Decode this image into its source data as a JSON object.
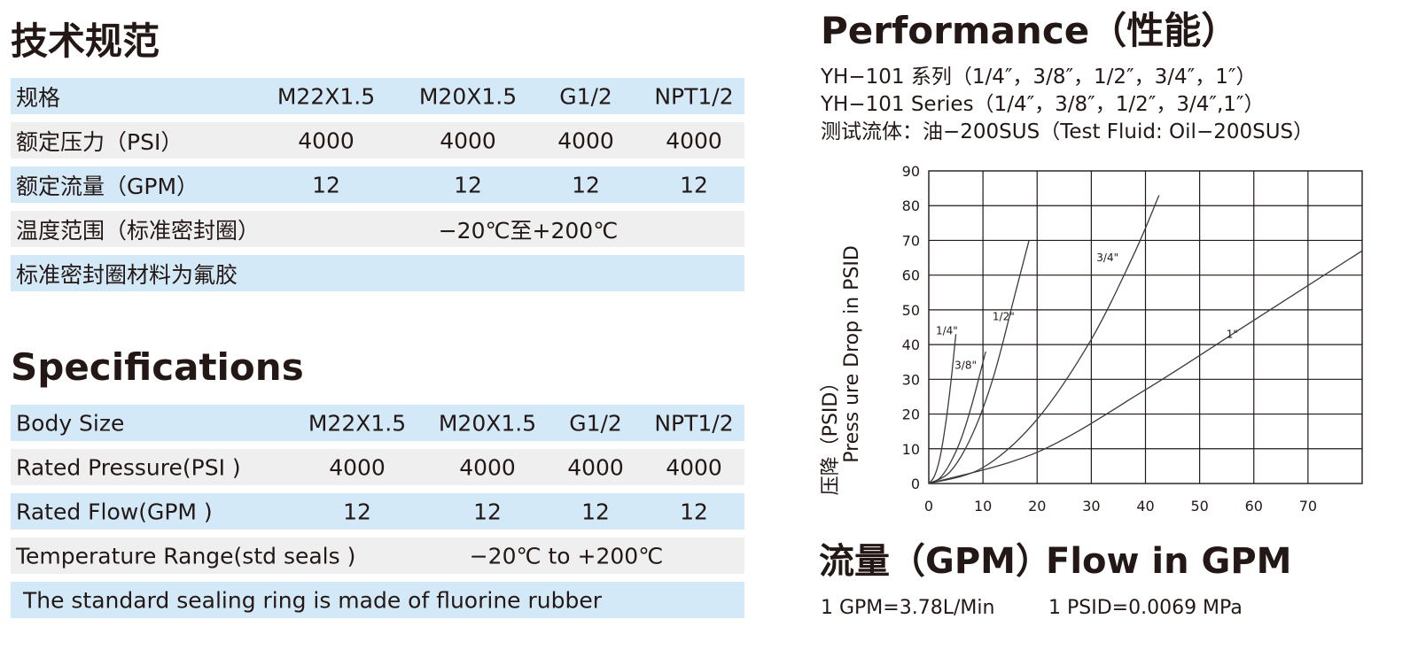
{
  "cn_section": {
    "title": "技术规范",
    "rows": [
      {
        "label": "规格",
        "values": [
          "M22X1.5",
          "M20X1.5",
          "G1/2",
          "NPT1/2"
        ]
      },
      {
        "label": "额定压力（PSI）",
        "values": [
          "4000",
          "4000",
          "4000",
          "4000"
        ]
      },
      {
        "label": "额定流量（GPM）",
        "values": [
          "12",
          "12",
          "12",
          "12"
        ]
      },
      {
        "label": "温度范围（标准密封圈）",
        "span": "−20℃至+200℃"
      },
      {
        "label": "标准密封圈材料为氟胶"
      }
    ]
  },
  "en_section": {
    "title": "Specifications",
    "rows": [
      {
        "label": "Body Size",
        "values": [
          "M22X1.5",
          "M20X1.5",
          "G1/2",
          "NPT1/2"
        ]
      },
      {
        "label": "Rated Pressure(PSI )",
        "values": [
          "4000",
          "4000",
          "4000",
          "4000"
        ]
      },
      {
        "label": "Rated Flow(GPM )",
        "values": [
          "12",
          "12",
          "12",
          "12"
        ]
      },
      {
        "label": "Temperature Range(std seals )",
        "span": "−20℃ to +200℃"
      },
      {
        "label": " The standard sealing ring is made of fluorine rubber"
      }
    ]
  },
  "performance": {
    "title": "Performance（性能）",
    "line1": "YH−101 系列（1/4″，3/8″，1/2″，3/4″，1″）",
    "line2": "YH−101 Series（1/4″，3/8″，1/2″，3/4″,1″）",
    "line3": "测试流体：油−200SUS（Test Fluid: Oil−200SUS）"
  },
  "bottom": {
    "flow_cn": "流量（GPM）",
    "flow_en": "Flow in GPM",
    "conv1": "1 GPM=3.78L/Min",
    "conv2": "1 PSID=0.0069 MPa"
  },
  "chart_data": {
    "type": "line",
    "title": "",
    "xlabel": "",
    "ylabel": "压降（PSID）Press ure Drop in PSID",
    "ylabel_cn": "压降（PSID）",
    "ylabel_en": "Press ure Drop in PSID",
    "xlim": [
      0,
      80
    ],
    "ylim": [
      0,
      90
    ],
    "x_ticks": [
      0,
      10,
      20,
      30,
      40,
      50,
      60,
      70
    ],
    "y_ticks": [
      0,
      10,
      20,
      30,
      40,
      50,
      60,
      70,
      80,
      90
    ],
    "grid": true,
    "series": [
      {
        "name": "1/4\"",
        "x": [
          0,
          1,
          2,
          3,
          4,
          5
        ],
        "y": [
          0,
          2,
          7,
          16,
          28,
          43
        ]
      },
      {
        "name": "3/8\"",
        "x": [
          0,
          2,
          4,
          6,
          8,
          10.5
        ],
        "y": [
          0,
          1.5,
          6,
          13,
          23,
          38
        ]
      },
      {
        "name": "1/2\"",
        "x": [
          0,
          4,
          8,
          12,
          16,
          18.5
        ],
        "y": [
          0,
          3.5,
          14,
          31,
          55,
          70
        ]
      },
      {
        "name": "3/4\"",
        "x": [
          0,
          10,
          20,
          30,
          38,
          42.5
        ],
        "y": [
          0,
          4.6,
          18.5,
          41.5,
          66.5,
          83
        ]
      },
      {
        "name": "1\"",
        "x": [
          0,
          20,
          40,
          60,
          80
        ],
        "y": [
          0,
          9,
          27,
          47,
          67
        ]
      }
    ]
  }
}
